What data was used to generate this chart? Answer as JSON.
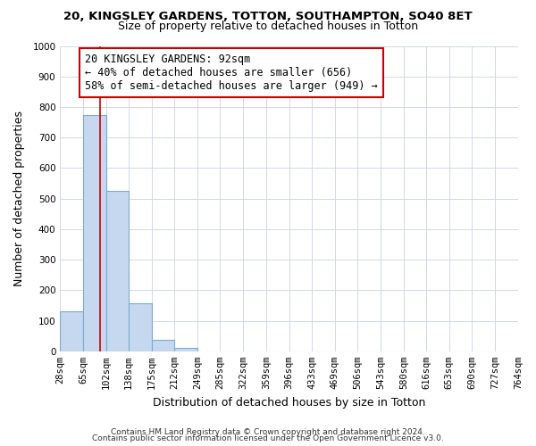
{
  "title": "20, KINGSLEY GARDENS, TOTTON, SOUTHAMPTON, SO40 8ET",
  "subtitle": "Size of property relative to detached houses in Totton",
  "xlabel": "Distribution of detached houses by size in Totton",
  "ylabel": "Number of detached properties",
  "bin_edges": [
    28,
    65,
    102,
    138,
    175,
    212,
    249,
    285,
    322,
    359,
    396,
    433,
    469,
    506,
    543,
    580,
    616,
    653,
    690,
    727,
    764
  ],
  "bar_heights": [
    130,
    775,
    525,
    157,
    38,
    10,
    0,
    0,
    0,
    0,
    0,
    0,
    0,
    0,
    0,
    0,
    0,
    0,
    0,
    0
  ],
  "bar_color": "#c5d8f0",
  "bar_edge_color": "#7aabce",
  "property_line_x": 92,
  "property_line_color": "#cc0000",
  "annotation_text": "20 KINGSLEY GARDENS: 92sqm\n← 40% of detached houses are smaller (656)\n58% of semi-detached houses are larger (949) →",
  "annotation_box_color": "#ffffff",
  "annotation_box_edge_color": "#cc0000",
  "ylim": [
    0,
    1000
  ],
  "yticks": [
    0,
    100,
    200,
    300,
    400,
    500,
    600,
    700,
    800,
    900,
    1000
  ],
  "tick_labels": [
    "28sqm",
    "65sqm",
    "102sqm",
    "138sqm",
    "175sqm",
    "212sqm",
    "249sqm",
    "285sqm",
    "322sqm",
    "359sqm",
    "396sqm",
    "433sqm",
    "469sqm",
    "506sqm",
    "543sqm",
    "580sqm",
    "616sqm",
    "653sqm",
    "690sqm",
    "727sqm",
    "764sqm"
  ],
  "footer_line1": "Contains HM Land Registry data © Crown copyright and database right 2024.",
  "footer_line2": "Contains public sector information licensed under the Open Government Licence v3.0.",
  "bg_color": "#ffffff",
  "grid_color": "#d0d8e8",
  "title_fontsize": 9.5,
  "subtitle_fontsize": 9,
  "axis_label_fontsize": 9,
  "tick_fontsize": 7.5,
  "annotation_fontsize": 8.5,
  "footer_fontsize": 6.5
}
